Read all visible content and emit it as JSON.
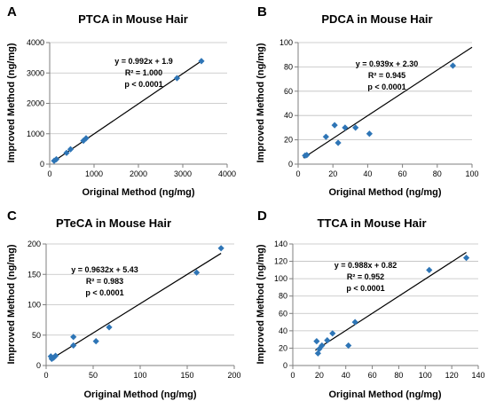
{
  "marker_color": "#2e75b6",
  "chart_data": [
    {
      "type": "scatter",
      "panel": "A",
      "title": "PTCA in Mouse Hair",
      "xlabel": "Original Method (ng/mg)",
      "ylabel": "Improved Method (ng/mg)",
      "xlim": [
        0,
        4000
      ],
      "ylim": [
        0,
        4000
      ],
      "xticks": [
        0,
        1000,
        2000,
        3000,
        4000
      ],
      "yticks": [
        0,
        1000,
        2000,
        3000,
        4000
      ],
      "grid": "horizontal",
      "fit": {
        "slope": 0.992,
        "intercept": 1.9,
        "x_range": [
          100,
          3420
        ]
      },
      "annotations": [
        "y = 0.992x + 1.9",
        "R² = 1.000",
        "p < 0.0001"
      ],
      "points": [
        [
          100,
          110
        ],
        [
          150,
          160
        ],
        [
          380,
          370
        ],
        [
          470,
          490
        ],
        [
          760,
          770
        ],
        [
          820,
          850
        ],
        [
          2870,
          2830
        ],
        [
          3420,
          3390
        ]
      ]
    },
    {
      "type": "scatter",
      "panel": "B",
      "title": "PDCA in Mouse Hair",
      "xlabel": "Original Method (ng/mg)",
      "ylabel": "Improved Method (ng/mg)",
      "xlim": [
        0,
        100
      ],
      "ylim": [
        0,
        100
      ],
      "xticks": [
        0,
        20,
        40,
        60,
        80,
        100
      ],
      "yticks": [
        0,
        20,
        40,
        60,
        80,
        100
      ],
      "grid": "horizontal",
      "fit": {
        "slope": 0.939,
        "intercept": 2.3,
        "x_range": [
          3,
          100
        ]
      },
      "annotations": [
        "y = 0.939x + 2.30",
        "R² = 0.945",
        "p < 0.0001"
      ],
      "points": [
        [
          4,
          7
        ],
        [
          5,
          7.5
        ],
        [
          16,
          22.5
        ],
        [
          21,
          32
        ],
        [
          23,
          17.5
        ],
        [
          27,
          30
        ],
        [
          33,
          30
        ],
        [
          41,
          25
        ],
        [
          89,
          81
        ]
      ]
    },
    {
      "type": "scatter",
      "panel": "C",
      "title": "PTeCA in Mouse Hair",
      "xlabel": "Original Method (ng/mg)",
      "ylabel": "Improved Method (ng/mg)",
      "xlim": [
        0,
        200
      ],
      "ylim": [
        0,
        200
      ],
      "xticks": [
        0,
        50,
        100,
        150,
        200
      ],
      "yticks": [
        0,
        50,
        100,
        150,
        200
      ],
      "grid": "horizontal",
      "fit": {
        "slope": 0.9632,
        "intercept": 5.43,
        "x_range": [
          4,
          186
        ]
      },
      "annotations": [
        "y = 0.9632x + 5.43",
        "R² = 0.983",
        "p < 0.0001"
      ],
      "points": [
        [
          5,
          15
        ],
        [
          6,
          11
        ],
        [
          8,
          13
        ],
        [
          10,
          16
        ],
        [
          29,
          47
        ],
        [
          29,
          33
        ],
        [
          53,
          40
        ],
        [
          67,
          63
        ],
        [
          160,
          153
        ],
        [
          186,
          193
        ]
      ]
    },
    {
      "type": "scatter",
      "panel": "D",
      "title": "TTCA in Mouse Hair",
      "xlabel": "Original Method (ng/mg)",
      "ylabel": "Improved Method (ng/mg)",
      "xlim": [
        0,
        140
      ],
      "ylim": [
        0,
        140
      ],
      "xticks": [
        0,
        20,
        40,
        60,
        80,
        100,
        120,
        140
      ],
      "yticks": [
        0,
        20,
        40,
        60,
        80,
        100,
        120,
        140
      ],
      "grid": "horizontal",
      "fit": {
        "slope": 0.988,
        "intercept": 0.82,
        "x_range": [
          17,
          131
        ]
      },
      "annotations": [
        "y = 0.988x + 0.82",
        "R² = 0.952",
        "p < 0.0001"
      ],
      "points": [
        [
          18,
          28
        ],
        [
          19,
          14
        ],
        [
          20,
          19
        ],
        [
          22,
          23
        ],
        [
          26,
          29
        ],
        [
          30,
          37
        ],
        [
          42,
          23
        ],
        [
          47,
          50
        ],
        [
          103,
          110
        ],
        [
          131,
          124
        ]
      ]
    }
  ]
}
